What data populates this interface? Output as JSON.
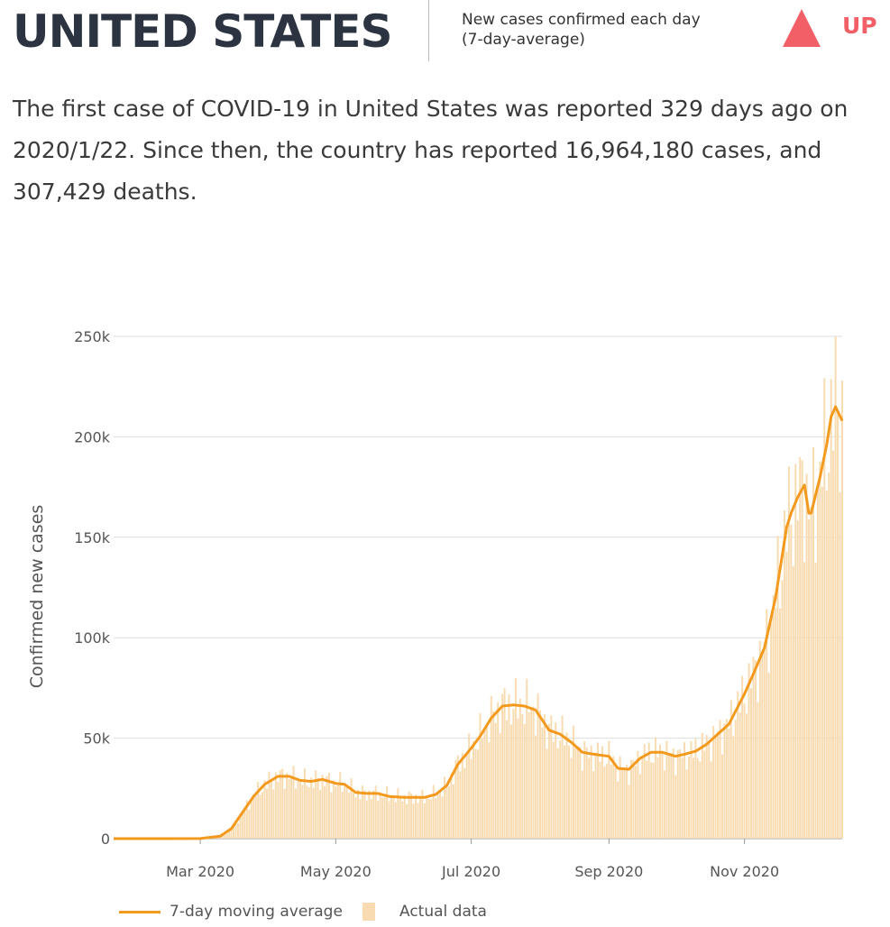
{
  "header": {
    "country": "UNITED STATES",
    "caption_line1": "New cases confirmed each day",
    "caption_line2": "(7-day-average)",
    "trend": "UP",
    "trend_color": "#f25f66",
    "trend_icon": "up-triangle-icon"
  },
  "summary": "The first case of COVID-19 in United States was reported 329 days ago on 2020/1/22. Since then, the country has reported 16,964,180 cases, and 307,429 deaths.",
  "legend": {
    "line_label": "7-day moving average",
    "bar_label": "Actual data"
  },
  "colors": {
    "line": "#f39a1e",
    "bars": "#f8dbb0",
    "grid": "#dddddd"
  },
  "chart_data": {
    "type": "line",
    "ylabel": "Confirmed new cases",
    "ylim": [
      0,
      250000
    ],
    "y_ticks": [
      0,
      50000,
      100000,
      150000,
      200000,
      250000
    ],
    "y_tick_labels": [
      "0",
      "50k",
      "100k",
      "150k",
      "200k",
      "250k"
    ],
    "x_range": [
      "2020-01-22",
      "2020-12-15"
    ],
    "x_ticks": [
      "2020-03-01",
      "2020-05-01",
      "2020-07-01",
      "2020-09-01",
      "2020-11-01"
    ],
    "x_tick_labels": [
      "Mar 2020",
      "May 2020",
      "Jul 2020",
      "Sep 2020",
      "Nov 2020"
    ],
    "grid": true,
    "series": [
      {
        "name": "7-day moving average",
        "style": "line",
        "x": [
          "2020-01-22",
          "2020-02-15",
          "2020-03-01",
          "2020-03-10",
          "2020-03-15",
          "2020-03-20",
          "2020-03-25",
          "2020-03-30",
          "2020-04-05",
          "2020-04-10",
          "2020-04-15",
          "2020-04-20",
          "2020-04-25",
          "2020-05-01",
          "2020-05-05",
          "2020-05-10",
          "2020-05-15",
          "2020-05-20",
          "2020-05-25",
          "2020-06-01",
          "2020-06-05",
          "2020-06-10",
          "2020-06-15",
          "2020-06-20",
          "2020-06-25",
          "2020-07-01",
          "2020-07-05",
          "2020-07-10",
          "2020-07-15",
          "2020-07-20",
          "2020-07-25",
          "2020-07-30",
          "2020-08-05",
          "2020-08-10",
          "2020-08-15",
          "2020-08-20",
          "2020-08-25",
          "2020-09-01",
          "2020-09-05",
          "2020-09-10",
          "2020-09-15",
          "2020-09-20",
          "2020-09-25",
          "2020-10-01",
          "2020-10-05",
          "2020-10-10",
          "2020-10-15",
          "2020-10-20",
          "2020-10-25",
          "2020-11-01",
          "2020-11-05",
          "2020-11-10",
          "2020-11-15",
          "2020-11-20",
          "2020-11-22",
          "2020-11-25",
          "2020-11-28",
          "2020-11-30",
          "2020-12-01",
          "2020-12-05",
          "2020-12-08",
          "2020-12-10",
          "2020-12-12",
          "2020-12-15"
        ],
        "values": [
          0,
          0,
          50,
          1200,
          5000,
          13000,
          21000,
          27000,
          31000,
          31000,
          29000,
          28500,
          29500,
          27500,
          27000,
          23000,
          22500,
          22500,
          21000,
          20500,
          20500,
          20500,
          22000,
          26500,
          37000,
          45000,
          51000,
          60000,
          66000,
          66500,
          66000,
          64000,
          54000,
          52000,
          48000,
          43000,
          42000,
          41000,
          35000,
          34500,
          40000,
          43000,
          43000,
          41000,
          42000,
          43500,
          47000,
          52000,
          57000,
          72000,
          82000,
          95000,
          120000,
          155000,
          162000,
          170000,
          176000,
          162000,
          162000,
          180000,
          196000,
          210000,
          215000,
          208000
        ]
      },
      {
        "name": "Actual data",
        "style": "bars"
      }
    ]
  }
}
